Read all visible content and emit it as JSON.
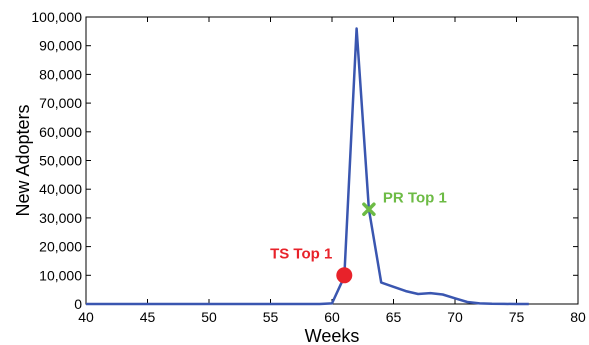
{
  "chart_data": {
    "type": "line",
    "title": "",
    "xlabel": "Weeks",
    "ylabel": "New Adopters",
    "xlim": [
      40,
      80
    ],
    "ylim": [
      0,
      100000
    ],
    "x_ticks": [
      40,
      45,
      50,
      55,
      60,
      65,
      70,
      75,
      80
    ],
    "x_tick_labels": [
      "40",
      "45",
      "50",
      "55",
      "60",
      "65",
      "70",
      "75",
      "80"
    ],
    "y_ticks": [
      0,
      10000,
      20000,
      30000,
      40000,
      50000,
      60000,
      70000,
      80000,
      90000,
      100000
    ],
    "y_tick_labels": [
      "0",
      "10,000",
      "20,000",
      "30,000",
      "40,000",
      "50,000",
      "60,000",
      "70,000",
      "80,000",
      "90,000",
      "100,000"
    ],
    "grid": false,
    "line_color": "#3a56b0",
    "series": [
      {
        "x": [
          40,
          45,
          50,
          55,
          59,
          60,
          61,
          62,
          63,
          64,
          65,
          66,
          67,
          68,
          69,
          70,
          71,
          72,
          73,
          74,
          75,
          76
        ],
        "y": [
          0,
          0,
          0,
          0,
          0,
          200,
          9500,
          96000,
          33000,
          7500,
          6000,
          4500,
          3500,
          3800,
          3300,
          2000,
          700,
          200,
          80,
          30,
          10,
          0
        ]
      }
    ],
    "annotations": [
      {
        "label": "TS Top 1",
        "x": 61,
        "y": 10000,
        "marker": "circle",
        "color": "#e8222a"
      },
      {
        "label": "PR Top 1",
        "x": 63,
        "y": 33000,
        "marker": "x",
        "color": "#6dbb45"
      }
    ]
  }
}
